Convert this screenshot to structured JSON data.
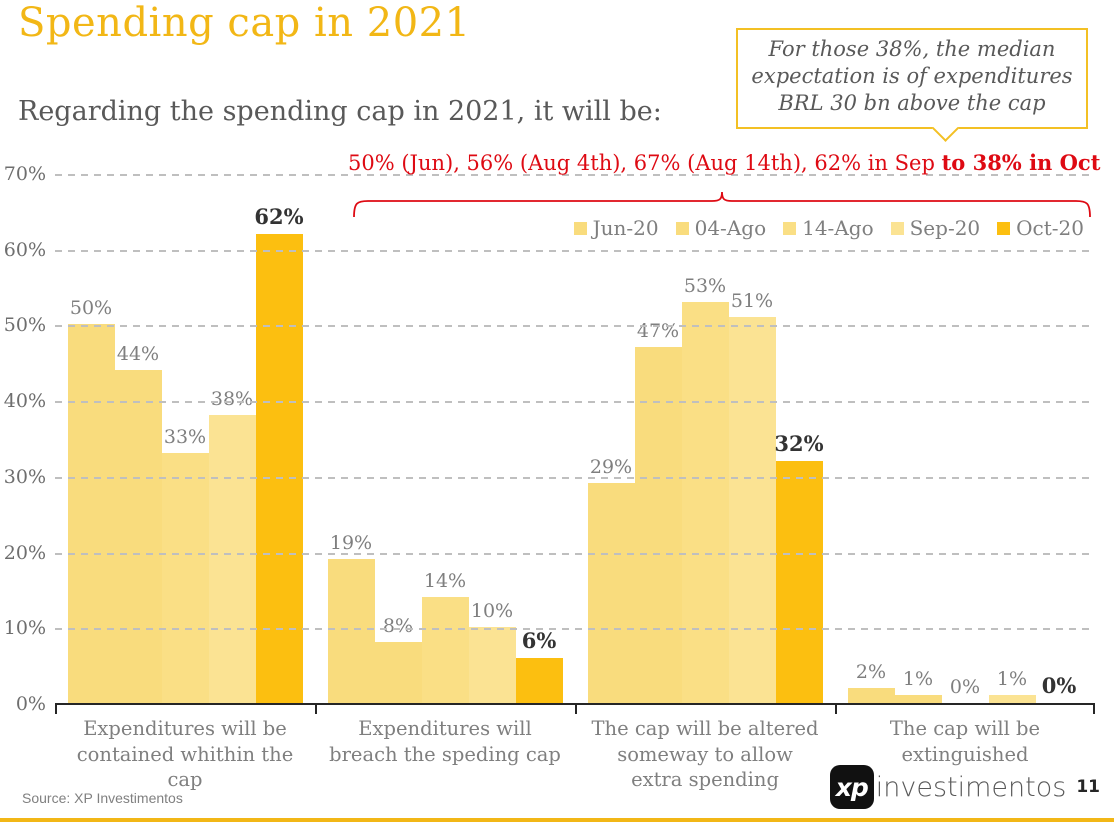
{
  "header": {
    "title": "Spending cap in 2021",
    "subtitle": "Regarding the spending cap in 2021, it will be:"
  },
  "callout": {
    "text": "For those 38%, the median expectation is of expenditures BRL 30 bn above the cap"
  },
  "annotation": {
    "normal": "50% (Jun), 56% (Aug 4th), 67% (Aug 14th), 62% in Sep ",
    "bold": "to 38% in Oct"
  },
  "chart_data": {
    "type": "bar",
    "title": "Spending cap in 2021",
    "categories": [
      "Expenditures will be contained whithin the cap",
      "Expenditures will breach the speding cap",
      "The cap will be altered someway to allow extra spending",
      "The cap will be extinguished"
    ],
    "series": [
      {
        "name": "Jun-20",
        "color": "#F9DC7D",
        "emphasis": false,
        "values": [
          50,
          19,
          29,
          2
        ]
      },
      {
        "name": "04-Ago",
        "color": "#F9DC7D",
        "emphasis": false,
        "values": [
          44,
          8,
          47,
          1
        ]
      },
      {
        "name": "14-Ago",
        "color": "#FADF85",
        "emphasis": false,
        "values": [
          33,
          14,
          53,
          0
        ]
      },
      {
        "name": "Sep-20",
        "color": "#FBE393",
        "emphasis": false,
        "values": [
          38,
          10,
          51,
          1
        ]
      },
      {
        "name": "Oct-20",
        "color": "#FCBF10",
        "emphasis": true,
        "values": [
          62,
          6,
          32,
          0
        ]
      }
    ],
    "value_suffix": "%",
    "ylim": [
      0,
      70
    ],
    "yticks": [
      "0%",
      "10%",
      "20%",
      "30%",
      "40%",
      "50%",
      "60%",
      "70%"
    ],
    "grid": "horizontal-dashed",
    "legend_position": "top-right"
  },
  "footer": {
    "source": "Source: XP Investimentos",
    "logo_mark": "xp",
    "logo_word": "investimentos",
    "page_number": "11"
  },
  "colors": {
    "accent_gold": "#F2B716",
    "annotation_red": "#DE0A13",
    "callout_border": "#F3C024",
    "text_gray": "#7F7F7F",
    "axis_black": "#262626"
  }
}
